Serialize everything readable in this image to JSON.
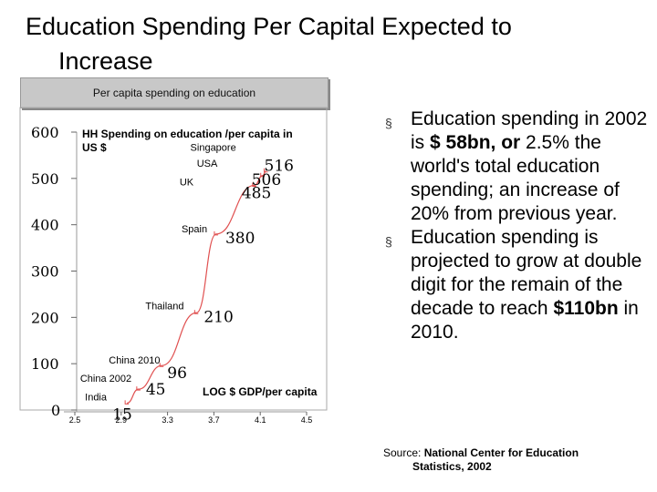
{
  "slide": {
    "title_line1": "Education Spending Per Capital Expected to",
    "title_line2": "Increase",
    "panel_header": "Per capita spending on education"
  },
  "chart_data": {
    "type": "line",
    "chart_title": "HH Spending on education /per capita in US $",
    "chart_title_line1": "HH Spending on education /per capita in",
    "chart_title_line2": "US $",
    "xlabel": "LOG $ GDP/per capita",
    "ylabel": "",
    "x_ticks": [
      "2.5",
      "2.9",
      "3.3",
      "3.7",
      "4.1",
      "4.5"
    ],
    "y_ticks": [
      "0",
      "100",
      "200",
      "300",
      "400",
      "500",
      "600"
    ],
    "xlim": [
      2.5,
      4.5
    ],
    "ylim": [
      0,
      600
    ],
    "grid": false,
    "points": [
      {
        "name": "India",
        "x": 2.95,
        "y": 15,
        "value_label": "15"
      },
      {
        "name": "China 2002",
        "x": 3.05,
        "y": 45,
        "value_label": "45"
      },
      {
        "name": "China 2010",
        "x": 3.25,
        "y": 96,
        "value_label": "96"
      },
      {
        "name": "Thailand",
        "x": 3.55,
        "y": 210,
        "value_label": "210"
      },
      {
        "name": "Spain",
        "x": 3.72,
        "y": 380,
        "value_label": "380"
      },
      {
        "name": "UK",
        "x": 4.05,
        "y": 485,
        "value_label": "485"
      },
      {
        "name": "USA",
        "x": 4.12,
        "y": 506,
        "value_label": "506"
      },
      {
        "name": "Singapore",
        "x": 4.15,
        "y": 516,
        "value_label": "516"
      }
    ]
  },
  "bullets": [
    {
      "marker": "§",
      "parts": [
        {
          "text": "Education spending in 2002 is ",
          "bold": false
        },
        {
          "text": "$ 58bn, or",
          "bold": true
        },
        {
          "text": " 2.5%  the world's total education spending; an increase of 20% from previous year.",
          "bold": false
        }
      ]
    },
    {
      "marker": "§",
      "parts": [
        {
          "text": "Education spending is projected to grow at double digit for the remain of the decade to reach ",
          "bold": false
        },
        {
          "text": "$110bn",
          "bold": true
        },
        {
          "text": " in 2010.",
          "bold": false
        }
      ]
    }
  ],
  "source": {
    "prefix": "Source: ",
    "text_line1": "National Center for Education",
    "text_line2": "Statistics, 2002"
  }
}
